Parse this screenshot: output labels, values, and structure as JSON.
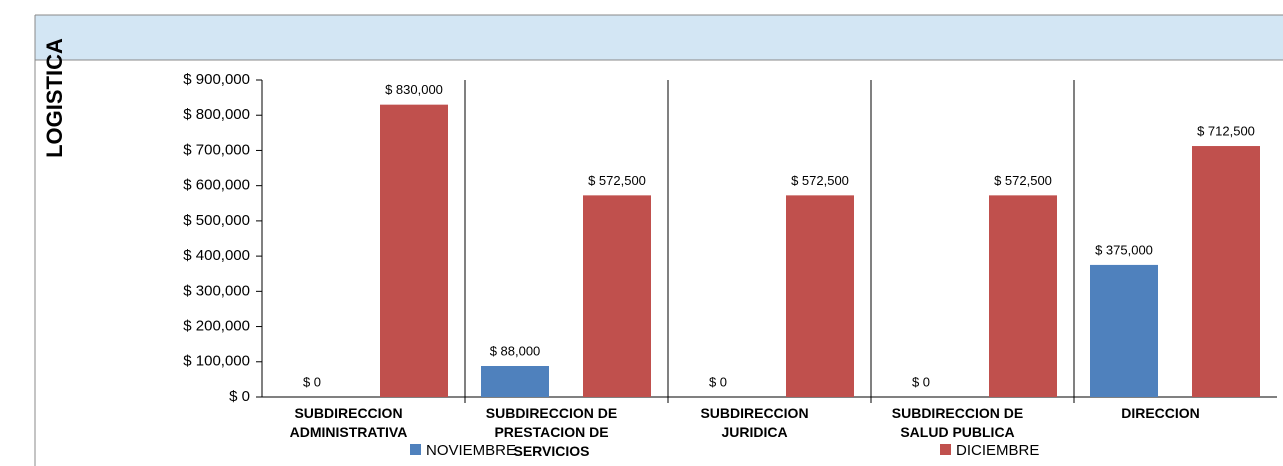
{
  "chart_data": {
    "type": "bar",
    "title": "LOGISTICA",
    "categories": [
      "SUBDIRECCION ADMINISTRATIVA",
      "SUBDIRECCION DE PRESTACION DE SERVICIOS",
      "SUBDIRECCION JURIDICA",
      "SUBDIRECCION DE SALUD PUBLICA",
      "DIRECCION"
    ],
    "series": [
      {
        "name": "NOVIEMBRE",
        "color": "#4f81bd",
        "values": [
          0,
          88000,
          0,
          0,
          375000
        ],
        "value_labels": [
          "$ 0",
          "$ 88,000",
          "$ 0",
          "$ 0",
          "$ 375,000"
        ]
      },
      {
        "name": "DICIEMBRE",
        "color": "#c0504d",
        "values": [
          830000,
          572500,
          572500,
          572500,
          712500
        ],
        "value_labels": [
          "$ 830,000",
          "$ 572,500",
          "$ 572,500",
          "$ 572,500",
          "$ 712,500"
        ]
      }
    ],
    "ylim": [
      0,
      900000
    ],
    "yticks": [
      {
        "value": 0,
        "label": "$ 0"
      },
      {
        "value": 100000,
        "label": "$ 100,000"
      },
      {
        "value": 200000,
        "label": "$ 200,000"
      },
      {
        "value": 300000,
        "label": "$ 300,000"
      },
      {
        "value": 400000,
        "label": "$ 400,000"
      },
      {
        "value": 500000,
        "label": "$ 500,000"
      },
      {
        "value": 600000,
        "label": "$ 600,000"
      },
      {
        "value": 700000,
        "label": "$ 700,000"
      },
      {
        "value": 800000,
        "label": "$ 800,000"
      },
      {
        "value": 900000,
        "label": "$ 900,000"
      }
    ],
    "legend": "bottom"
  }
}
